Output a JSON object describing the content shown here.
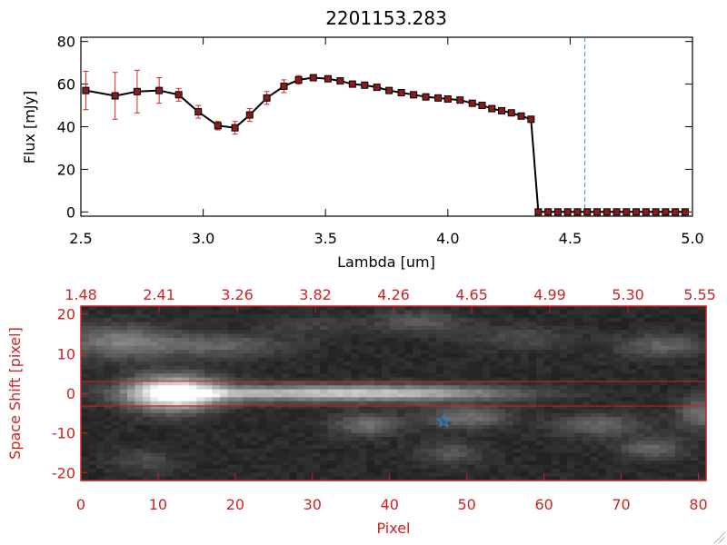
{
  "colors": {
    "axes_top": "#000000",
    "axes_bottom": "#cc2222",
    "points": "#8b1a1a",
    "errorbars": "#dd2222",
    "marker_line": "#2a9bd6",
    "star": "#1e88e5",
    "background": "#ffffff"
  },
  "chart_data": [
    {
      "type": "line",
      "title": "2201153.283",
      "xlabel": "Lambda [um]",
      "ylabel": "Flux [mJy]",
      "xlim": [
        2.5,
        5.0
      ],
      "ylim": [
        -2,
        82
      ],
      "xticks": [
        "2.5",
        "3.0",
        "3.5",
        "4.0",
        "4.5",
        "5.0"
      ],
      "yticks": [
        "0",
        "20",
        "40",
        "60",
        "80"
      ],
      "reference_line_x": 4.56,
      "series": [
        {
          "x": [
            2.52,
            2.64,
            2.73,
            2.82,
            2.9,
            2.98,
            3.06,
            3.13,
            3.19,
            3.26,
            3.33,
            3.39,
            3.45,
            3.51,
            3.56,
            3.61,
            3.66,
            3.71,
            3.76,
            3.81,
            3.86,
            3.91,
            3.96,
            4.0,
            4.05,
            4.1,
            4.14,
            4.18,
            4.22,
            4.26,
            4.3,
            4.34
          ],
          "y": [
            57,
            54.5,
            56.5,
            57,
            55,
            47,
            40.5,
            39.5,
            45.5,
            53.5,
            59,
            62,
            63,
            62.5,
            61.5,
            60,
            59.5,
            58.5,
            57,
            56,
            55,
            54,
            53.5,
            53,
            52.5,
            51,
            50,
            48.5,
            47.5,
            46.5,
            45,
            43.5
          ],
          "yerr": [
            9,
            11,
            10,
            6,
            3,
            3,
            2,
            3,
            3,
            3,
            3,
            2,
            1,
            1,
            1,
            1,
            1,
            1,
            1,
            1,
            1,
            1,
            1,
            1,
            1,
            1,
            1,
            1,
            1,
            1,
            1,
            1
          ]
        },
        {
          "x": [
            4.37,
            4.41,
            4.45,
            4.49,
            4.53,
            4.57,
            4.61,
            4.65,
            4.69,
            4.73,
            4.77,
            4.81,
            4.85,
            4.89,
            4.93,
            4.97
          ],
          "y": [
            0,
            0,
            0,
            0,
            0,
            0,
            0,
            0,
            0,
            0,
            0,
            0,
            0,
            0,
            0,
            0
          ]
        }
      ]
    },
    {
      "type": "heatmap",
      "xlabel": "Pixel",
      "ylabel": "Space Shift [pixel]",
      "xlim": [
        0,
        81
      ],
      "ylim": [
        -22,
        22
      ],
      "xticks": [
        "0",
        "10",
        "20",
        "30",
        "40",
        "50",
        "60",
        "70",
        "80"
      ],
      "yticks": [
        "-20",
        "-10",
        "0",
        "10",
        "20"
      ],
      "top_axis_ticks": [
        "1.48",
        "2.41",
        "3.26",
        "3.82",
        "4.26",
        "4.65",
        "4.99",
        "5.30",
        "5.55"
      ],
      "aperture_lines_y": [
        3,
        -3.2
      ],
      "star_marker": {
        "x": 47,
        "y": -7
      },
      "trace": {
        "y": 0,
        "peak_x": 12,
        "end_x": 66
      },
      "blobs": [
        {
          "x": 12,
          "y": 0,
          "sx": 4,
          "sy": 3,
          "amp": 0.95
        },
        {
          "x": 28,
          "y": 0,
          "sx": 14,
          "sy": 1.6,
          "amp": 0.45
        },
        {
          "x": 44,
          "y": 0,
          "sx": 10,
          "sy": 1.4,
          "amp": 0.3
        },
        {
          "x": 5,
          "y": 13,
          "sx": 5,
          "sy": 3,
          "amp": 0.35
        },
        {
          "x": 18,
          "y": 12,
          "sx": 6,
          "sy": 2,
          "amp": 0.25
        },
        {
          "x": 44,
          "y": 18,
          "sx": 4,
          "sy": 2,
          "amp": 0.2
        },
        {
          "x": 57,
          "y": 14,
          "sx": 5,
          "sy": 2,
          "amp": 0.15
        },
        {
          "x": 75,
          "y": 12,
          "sx": 4,
          "sy": 2,
          "amp": 0.25
        },
        {
          "x": 37,
          "y": -8,
          "sx": 3,
          "sy": 2,
          "amp": 0.3
        },
        {
          "x": 50,
          "y": -6,
          "sx": 4,
          "sy": 2,
          "amp": 0.3
        },
        {
          "x": 67,
          "y": -8,
          "sx": 4,
          "sy": 2,
          "amp": 0.25
        },
        {
          "x": 74,
          "y": -14,
          "sx": 3,
          "sy": 2,
          "amp": 0.25
        },
        {
          "x": 48,
          "y": -15,
          "sx": 3,
          "sy": 2,
          "amp": 0.2
        },
        {
          "x": 8,
          "y": -17,
          "sx": 3,
          "sy": 2,
          "amp": 0.15
        },
        {
          "x": 30,
          "y": 17,
          "sx": 5,
          "sy": 2,
          "amp": 0.1
        },
        {
          "x": 80,
          "y": -5,
          "sx": 2,
          "sy": 3,
          "amp": 0.3
        }
      ]
    }
  ]
}
